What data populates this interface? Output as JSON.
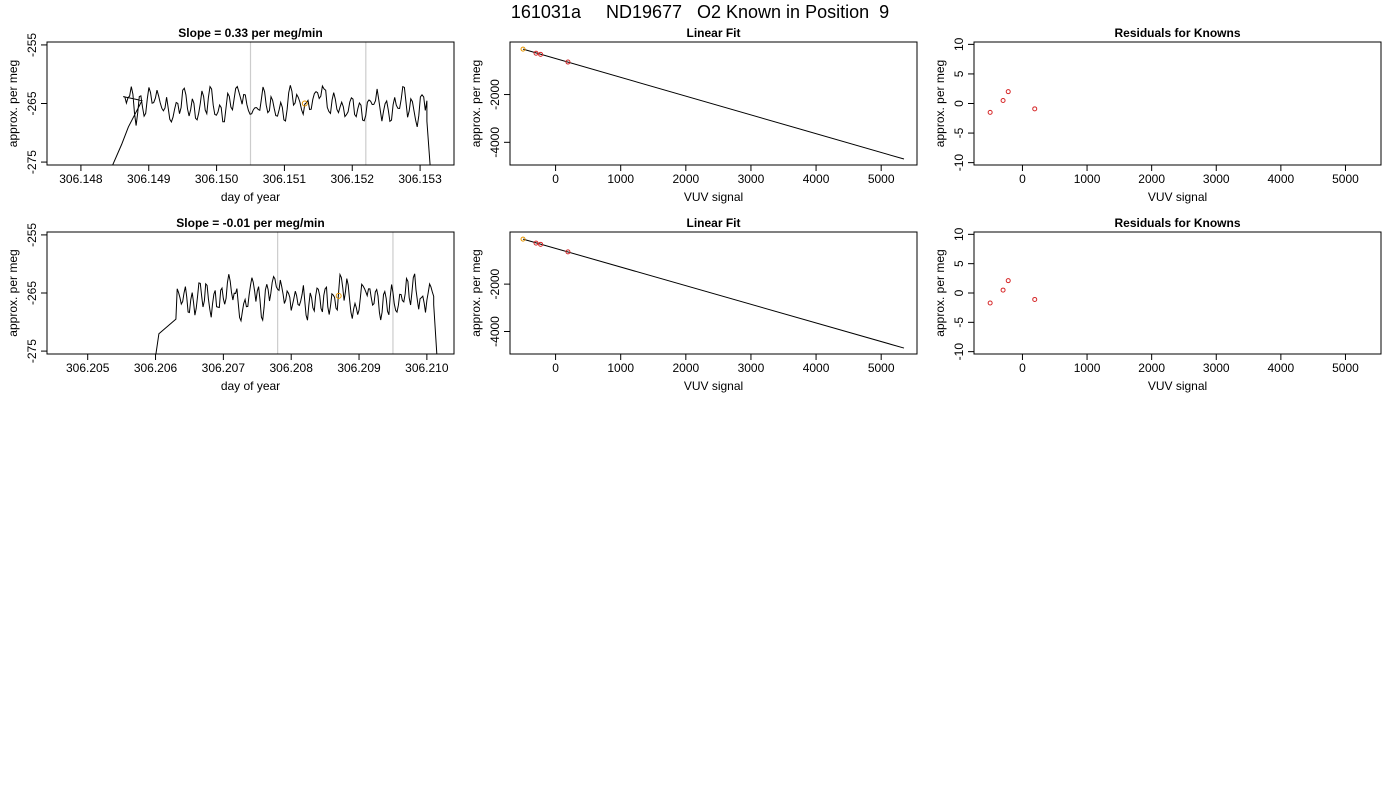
{
  "figure_title": "161031a     ND19677   O2 Known in Position  9",
  "colors": {
    "trace": "#000000",
    "marker_orange": "#e69500",
    "marker_red": "#d62728",
    "vline": "#cccccc"
  },
  "chart_data": [
    {
      "type": "line",
      "panel": "row1-col1",
      "title": "Slope =  0.33  per meg/min",
      "xlabel": "day of year",
      "ylabel": "approx. per meg",
      "xlim": [
        306.1475,
        306.1535
      ],
      "ylim": [
        -275.5,
        -254.5
      ],
      "xticks": [
        306.148,
        306.149,
        306.15,
        306.151,
        306.152,
        306.153
      ],
      "xtick_labels": [
        "306.148",
        "306.149",
        "306.150",
        "306.151",
        "306.152",
        "306.153"
      ],
      "yticks": [
        -255,
        -265,
        -275
      ],
      "ytick_labels": [
        "-255",
        "-265",
        "-275"
      ],
      "vlines": [
        306.1505,
        306.1522
      ],
      "marker": {
        "x": 306.1513,
        "y": -265.0,
        "color": "orange"
      },
      "trace": {
        "x_start": 306.1486,
        "x_end": 306.1531,
        "mean": -265.2,
        "amplitude": 1.8,
        "seed": 7,
        "points": [
          [
            306.14845,
            -276
          ],
          [
            306.1486,
            -272
          ],
          [
            306.1487,
            -269
          ],
          [
            306.1489,
            -264.5
          ]
        ],
        "end_points": [
          [
            306.1531,
            -268
          ],
          [
            306.15315,
            -276
          ]
        ]
      }
    },
    {
      "type": "scatter",
      "panel": "row1-col2",
      "title": "Linear Fit",
      "xlabel": "VUV signal",
      "ylabel": "approx. per meg",
      "xlim": [
        -700,
        5550
      ],
      "ylim": [
        -4950,
        200
      ],
      "xticks": [
        0,
        1000,
        2000,
        3000,
        4000,
        5000
      ],
      "xtick_labels": [
        "0",
        "1000",
        "2000",
        "3000",
        "4000",
        "5000"
      ],
      "yticks": [
        -2000,
        -4000
      ],
      "ytick_labels": [
        "-2000",
        "-4000"
      ],
      "fit_line": [
        [
          -500,
          -100
        ],
        [
          5350,
          -4700
        ]
      ],
      "points": [
        {
          "x": -500,
          "y": -100,
          "color": "orange"
        },
        {
          "x": -300,
          "y": -270,
          "color": "red"
        },
        {
          "x": -230,
          "y": -320,
          "color": "red"
        },
        {
          "x": 190,
          "y": -640,
          "color": "red"
        }
      ]
    },
    {
      "type": "scatter",
      "panel": "row1-col3",
      "title": "Residuals for Knowns",
      "xlabel": "VUV signal",
      "ylabel": "approx. per meg",
      "xlim": [
        -750,
        5550
      ],
      "ylim": [
        -10.4,
        10.4
      ],
      "xticks": [
        0,
        1000,
        2000,
        3000,
        4000,
        5000
      ],
      "xtick_labels": [
        "0",
        "1000",
        "2000",
        "3000",
        "4000",
        "5000"
      ],
      "yticks": [
        10,
        5,
        0,
        -5,
        -10
      ],
      "ytick_labels": [
        "10",
        "5",
        "0",
        "-5",
        "-10"
      ],
      "points": [
        {
          "x": -500,
          "y": -1.5,
          "color": "red"
        },
        {
          "x": -300,
          "y": 0.5,
          "color": "red"
        },
        {
          "x": -220,
          "y": 2.0,
          "color": "red"
        },
        {
          "x": 190,
          "y": -0.9,
          "color": "red"
        }
      ]
    },
    {
      "type": "line",
      "panel": "row2-col1",
      "title": "Slope =  -0.01  per meg/min",
      "xlabel": "day of year",
      "ylabel": "approx. per meg",
      "xlim": [
        306.2044,
        306.2104
      ],
      "ylim": [
        -275.5,
        -254.5
      ],
      "xticks": [
        306.205,
        306.206,
        306.207,
        306.208,
        306.209,
        306.21
      ],
      "xtick_labels": [
        "306.205",
        "306.206",
        "306.207",
        "306.208",
        "306.209",
        "306.210"
      ],
      "yticks": [
        -255,
        -265,
        -275
      ],
      "ytick_labels": [
        "-255",
        "-265",
        "-275"
      ],
      "vlines": [
        306.2078,
        306.2095
      ],
      "marker": {
        "x": 306.2087,
        "y": -265.5,
        "color": "orange"
      },
      "trace": {
        "x_start": 306.2063,
        "x_end": 306.2101,
        "mean": -265.8,
        "amplitude": 1.9,
        "seed": 13,
        "points": [
          [
            306.206,
            -276
          ],
          [
            306.20605,
            -272
          ],
          [
            306.2062,
            -270.5
          ],
          [
            306.2063,
            -269.5
          ]
        ],
        "end_points": [
          [
            306.2101,
            -267
          ],
          [
            306.21015,
            -276
          ]
        ]
      }
    },
    {
      "type": "scatter",
      "panel": "row2-col2",
      "title": "Linear Fit",
      "xlabel": "VUV signal",
      "ylabel": "approx. per meg",
      "xlim": [
        -700,
        5550
      ],
      "ylim": [
        -4950,
        200
      ],
      "xticks": [
        0,
        1000,
        2000,
        3000,
        4000,
        5000
      ],
      "xtick_labels": [
        "0",
        "1000",
        "2000",
        "3000",
        "4000",
        "5000"
      ],
      "yticks": [
        -2000,
        -4000
      ],
      "ytick_labels": [
        "-2000",
        "-4000"
      ],
      "fit_line": [
        [
          -500,
          -100
        ],
        [
          5350,
          -4700
        ]
      ],
      "points": [
        {
          "x": -500,
          "y": -100,
          "color": "orange"
        },
        {
          "x": -300,
          "y": -270,
          "color": "red"
        },
        {
          "x": -230,
          "y": -320,
          "color": "red"
        },
        {
          "x": 190,
          "y": -640,
          "color": "red"
        }
      ]
    },
    {
      "type": "scatter",
      "panel": "row2-col3",
      "title": "Residuals for Knowns",
      "xlabel": "VUV signal",
      "ylabel": "approx. per meg",
      "xlim": [
        -750,
        5550
      ],
      "ylim": [
        -10.4,
        10.4
      ],
      "xticks": [
        0,
        1000,
        2000,
        3000,
        4000,
        5000
      ],
      "xtick_labels": [
        "0",
        "1000",
        "2000",
        "3000",
        "4000",
        "5000"
      ],
      "yticks": [
        10,
        5,
        0,
        -5,
        -10
      ],
      "ytick_labels": [
        "10",
        "5",
        "0",
        "-5",
        "-10"
      ],
      "points": [
        {
          "x": -500,
          "y": -1.7,
          "color": "red"
        },
        {
          "x": -300,
          "y": 0.5,
          "color": "red"
        },
        {
          "x": -220,
          "y": 2.1,
          "color": "red"
        },
        {
          "x": 190,
          "y": -1.1,
          "color": "red"
        }
      ]
    }
  ]
}
